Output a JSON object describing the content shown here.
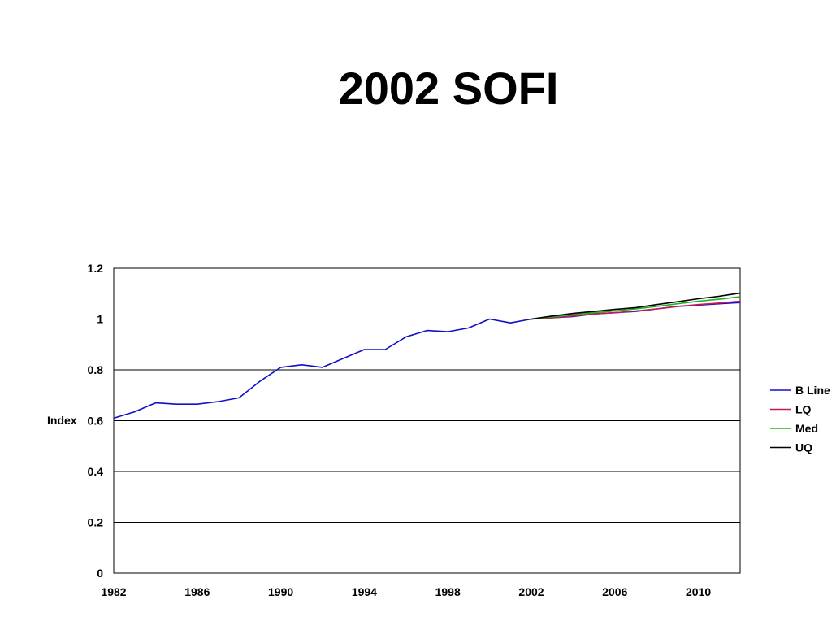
{
  "page": {
    "title": "2002 SOFI"
  },
  "chart_data": {
    "type": "line",
    "title": "2002 SOFI",
    "xlabel": "",
    "ylabel": "Index",
    "xlim": [
      1982,
      2012
    ],
    "ylim": [
      0,
      1.2
    ],
    "x_ticks": [
      1982,
      1986,
      1990,
      1994,
      1998,
      2002,
      2006,
      2010
    ],
    "y_ticks": [
      0,
      0.2,
      0.4,
      0.6,
      0.8,
      1,
      1.2
    ],
    "y_tick_labels": [
      "0",
      "0.2",
      "0.4",
      "0.6",
      "0.8",
      "1",
      "1.2"
    ],
    "grid": "horizontal",
    "legend_position": "right",
    "series": [
      {
        "name": "B Line",
        "color": "#1010c8",
        "x": [
          1982,
          1983,
          1984,
          1985,
          1986,
          1987,
          1988,
          1989,
          1990,
          1991,
          1992,
          1993,
          1994,
          1995,
          1996,
          1997,
          1998,
          1999,
          2000,
          2001,
          2002,
          2003,
          2004,
          2005,
          2006,
          2007,
          2008,
          2009,
          2010,
          2011,
          2012
        ],
        "values": [
          0.61,
          0.635,
          0.67,
          0.665,
          0.665,
          0.675,
          0.69,
          0.755,
          0.81,
          0.82,
          0.81,
          0.845,
          0.88,
          0.88,
          0.93,
          0.955,
          0.95,
          0.965,
          1.0,
          0.985,
          1.0,
          1.005,
          1.01,
          1.02,
          1.025,
          1.03,
          1.04,
          1.05,
          1.055,
          1.06,
          1.065
        ]
      },
      {
        "name": "LQ",
        "color": "#c8185a",
        "x": [
          2002,
          2003,
          2004,
          2005,
          2006,
          2007,
          2008,
          2009,
          2010,
          2011,
          2012
        ],
        "values": [
          1.0,
          1.005,
          1.012,
          1.02,
          1.025,
          1.032,
          1.04,
          1.05,
          1.057,
          1.063,
          1.07
        ]
      },
      {
        "name": "Med",
        "color": "#1cb41c",
        "x": [
          2002,
          2003,
          2004,
          2005,
          2006,
          2007,
          2008,
          2009,
          2010,
          2011,
          2012
        ],
        "values": [
          1.0,
          1.008,
          1.017,
          1.025,
          1.032,
          1.04,
          1.05,
          1.06,
          1.07,
          1.078,
          1.088
        ]
      },
      {
        "name": "UQ",
        "color": "#000000",
        "x": [
          2002,
          2003,
          2004,
          2005,
          2006,
          2007,
          2008,
          2009,
          2010,
          2011,
          2012
        ],
        "values": [
          1.0,
          1.012,
          1.022,
          1.03,
          1.038,
          1.045,
          1.057,
          1.068,
          1.08,
          1.09,
          1.102
        ]
      }
    ]
  }
}
